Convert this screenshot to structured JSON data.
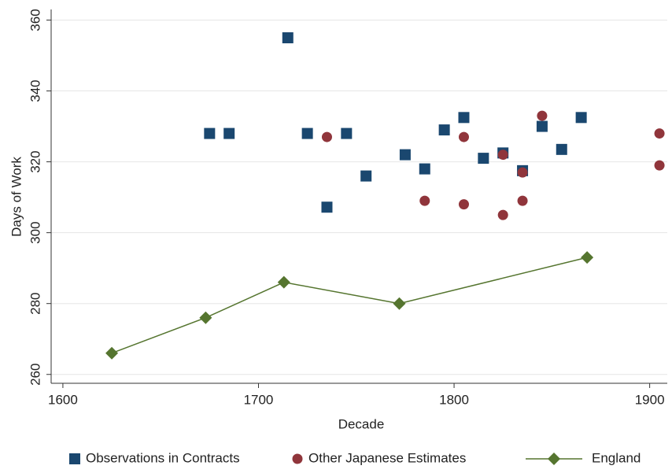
{
  "chart_data": {
    "type": "scatter",
    "xlabel": "Decade",
    "ylabel": "Days of Work",
    "xlim": [
      1594,
      1909
    ],
    "xticks": [
      1600,
      1700,
      1800,
      1900
    ],
    "ylim": [
      257.5,
      363
    ],
    "yticks": [
      260,
      280,
      300,
      320,
      340,
      360
    ],
    "grid": true,
    "legend": "bottom",
    "series": [
      {
        "name": "Observations in Contracts",
        "color": "#1a476f",
        "marker": "square",
        "x": [
          1675,
          1685,
          1715,
          1725,
          1735,
          1745,
          1755,
          1775,
          1785,
          1795,
          1805,
          1815,
          1825,
          1835,
          1845,
          1855,
          1865
        ],
        "values": [
          328,
          328,
          355,
          328,
          307.2,
          328,
          316,
          322,
          318,
          329,
          332.5,
          321,
          322.5,
          317.5,
          330,
          323.5,
          332.5
        ]
      },
      {
        "name": "Other Japanese Estimates",
        "color": "#90353b",
        "marker": "circle",
        "x": [
          1735,
          1785,
          1805,
          1805,
          1825,
          1825,
          1835,
          1835,
          1845,
          1905,
          1905
        ],
        "values": [
          327,
          309,
          327,
          308,
          322,
          305,
          317,
          309,
          333,
          328,
          319
        ]
      },
      {
        "name": "England",
        "color": "#55752f",
        "marker": "diamond",
        "line": true,
        "x": [
          1625,
          1673,
          1713,
          1772,
          1868
        ],
        "values": [
          266,
          276,
          286,
          280,
          293
        ]
      }
    ]
  }
}
